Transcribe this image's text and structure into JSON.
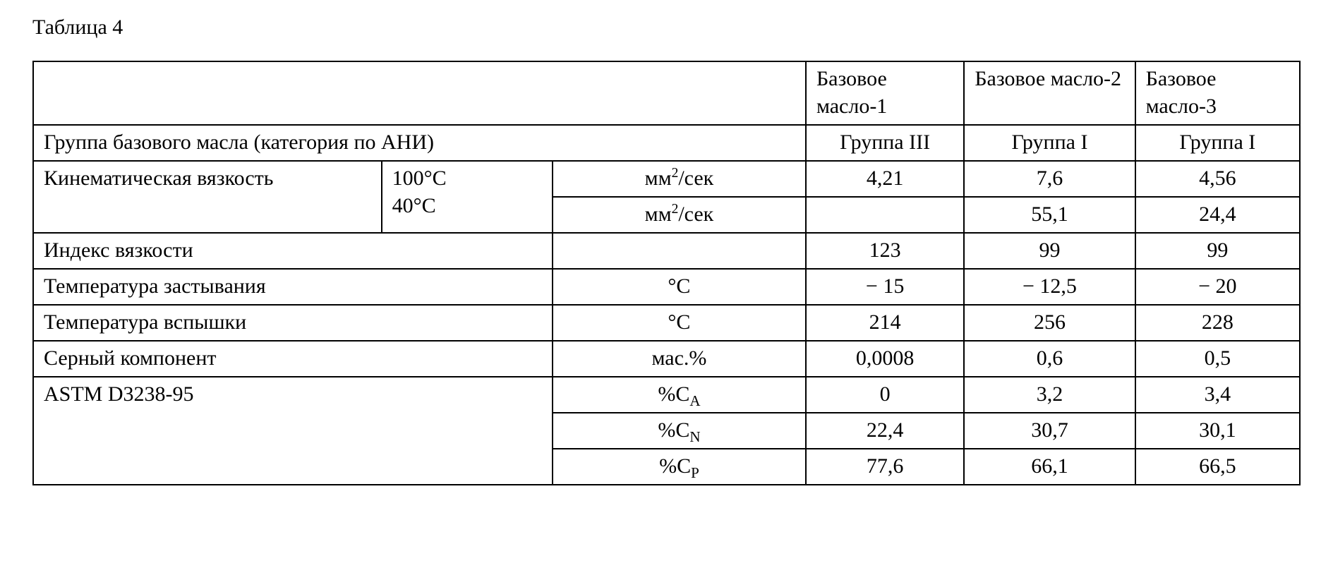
{
  "caption": "Таблица 4",
  "columns": {
    "oil1": "Базовое масло-1",
    "oil2": "Базовое масло-2",
    "oil3": "Базовое масло-3"
  },
  "rows": {
    "api_group": {
      "label": "Группа базового масла (категория по АНИ)",
      "v1": "Группа III",
      "v2": "Группа I",
      "v3": "Группа I"
    },
    "kv": {
      "label": "Кинематическая вязкость",
      "t100": "100°С",
      "t40": "40°С",
      "unit_prefix": "мм",
      "unit_exp": "2",
      "unit_suffix": "/сек",
      "r100": {
        "v1": "4,21",
        "v2": "7,6",
        "v3": "4,56"
      },
      "r40": {
        "v1": "",
        "v2": "55,1",
        "v3": "24,4"
      }
    },
    "vi": {
      "label": "Индекс вязкости",
      "unit": "",
      "v1": "123",
      "v2": "99",
      "v3": "99"
    },
    "pour": {
      "label": "Температура застывания",
      "unit": "°С",
      "v1": "− 15",
      "v2": "− 12,5",
      "v3": "− 20"
    },
    "flash": {
      "label": "Температура вспышки",
      "unit": "°С",
      "v1": "214",
      "v2": "256",
      "v3": "228"
    },
    "sulf": {
      "label": "Серный компонент",
      "unit": "мас.%",
      "v1": "0,0008",
      "v2": "0,6",
      "v3": "0,5"
    },
    "astm": {
      "label": "ASTM D3238-95",
      "unit_prefix": "%С",
      "ca": {
        "sub": "A",
        "v1": "0",
        "v2": "3,2",
        "v3": "3,4"
      },
      "cn": {
        "sub": "N",
        "v1": "22,4",
        "v2": "30,7",
        "v3": "30,1"
      },
      "cp": {
        "sub": "P",
        "v1": "77,6",
        "v2": "66,1",
        "v3": "66,5"
      }
    }
  },
  "style": {
    "font_family": "Times New Roman",
    "font_size_pt": 22,
    "border_color": "#000000",
    "background_color": "#ffffff",
    "text_color": "#000000"
  }
}
